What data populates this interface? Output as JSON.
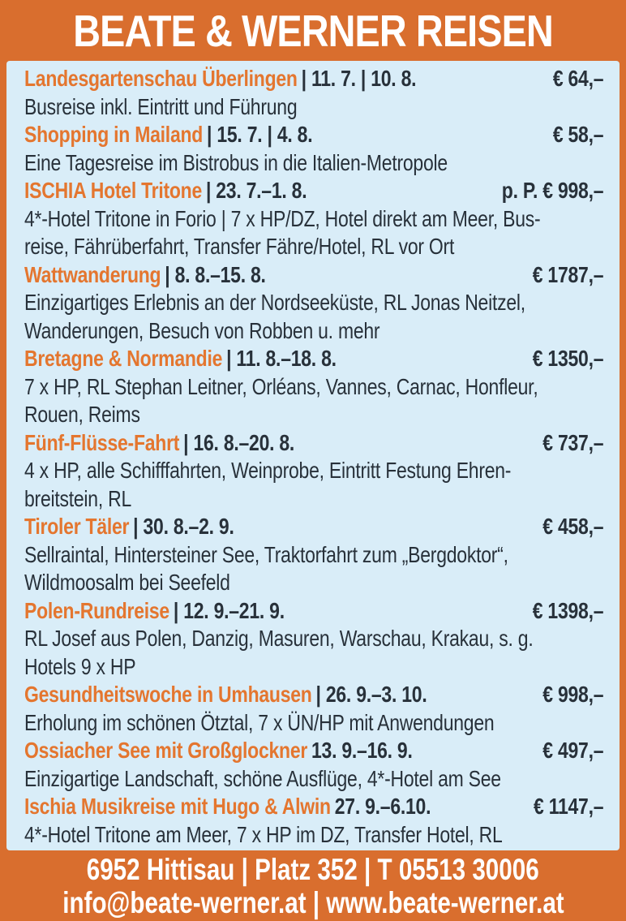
{
  "header": {
    "title": "BEATE & WERNER REISEN"
  },
  "colors": {
    "orange": "#D96E2E",
    "panel_blue": "#D9EDF8",
    "title_orange": "#E4762F",
    "text_dark": "#28313A",
    "white": "#FFFFFF"
  },
  "offers": [
    {
      "title": "Landesgartenschau Überlingen",
      "dates": "| 11. 7. | 10. 8.",
      "price": "€ 64,–",
      "desc": "Busreise inkl. Eintritt und Führung"
    },
    {
      "title": "Shopping in Mailand",
      "dates": "| 15. 7. | 4. 8.",
      "price": "€ 58,–",
      "desc": "Eine Tagesreise im Bistrobus in die Italien-Metropole"
    },
    {
      "title": "ISCHIA Hotel Tritone",
      "dates": "| 23. 7.–1. 8.",
      "price": "p. P. € 998,–",
      "desc": "4*-Hotel Tritone in Forio | 7 x HP/DZ, Hotel direkt am Meer, Bus-\nreise, Fährüberfahrt, Transfer Fähre/Hotel, RL vor Ort"
    },
    {
      "title": "Wattwanderung",
      "dates": "| 8. 8.–15. 8.",
      "price": "€ 1787,–",
      "desc": "Einzigartiges Erlebnis an der Nordseeküste, RL Jonas Neitzel,\nWanderungen, Besuch von Robben u. mehr"
    },
    {
      "title": "Bretagne & Normandie",
      "dates": "| 11. 8.–18. 8.",
      "price": "€ 1350,–",
      "desc": "7 x HP, RL Stephan Leitner, Orléans, Vannes, Carnac, Honfleur,\nRouen, Reims"
    },
    {
      "title": "Fünf-Flüsse-Fahrt",
      "dates": "| 16. 8.–20. 8.",
      "price": "€ 737,–",
      "desc": "4 x HP, alle Schifffahrten, Weinprobe, Eintritt Festung Ehren-\nbreitstein, RL"
    },
    {
      "title": "Tiroler Täler",
      "dates": "| 30. 8.–2. 9.",
      "price": "€ 458,–",
      "desc": "Sellraintal, Hintersteiner See, Traktorfahrt zum „Bergdoktor“,\nWildmoosalm bei Seefeld"
    },
    {
      "title": "Polen-Rundreise",
      "dates": "| 12. 9.–21. 9.",
      "price": "€ 1398,–",
      "desc": "RL Josef aus Polen, Danzig, Masuren, Warschau, Krakau, s. g.\nHotels 9 x HP"
    },
    {
      "title": "Gesundheitswoche in Umhausen",
      "dates": "| 26. 9.–3. 10.",
      "price": "€ 998,–",
      "desc": "Erholung im schönen Ötztal, 7 x ÜN/HP mit Anwendungen"
    },
    {
      "title": "Ossiacher See mit Großglockner",
      "dates": "13. 9.–16. 9.",
      "price": "€ 497,–",
      "desc": "Einzigartige Landschaft, schöne Ausflüge, 4*-Hotel am See"
    },
    {
      "title": "Ischia Musikreise mit Hugo & Alwin",
      "dates": "27. 9.–6.10.",
      "price": "€ 1147,–",
      "desc": "4*-Hotel Tritone am Meer, 7 x HP im DZ, Transfer Hotel, RL"
    }
  ],
  "footer": {
    "line1": "6952 Hittisau | Platz 352 | T 05513 30006",
    "line2": "info@beate-werner.at | www.beate-werner.at"
  }
}
